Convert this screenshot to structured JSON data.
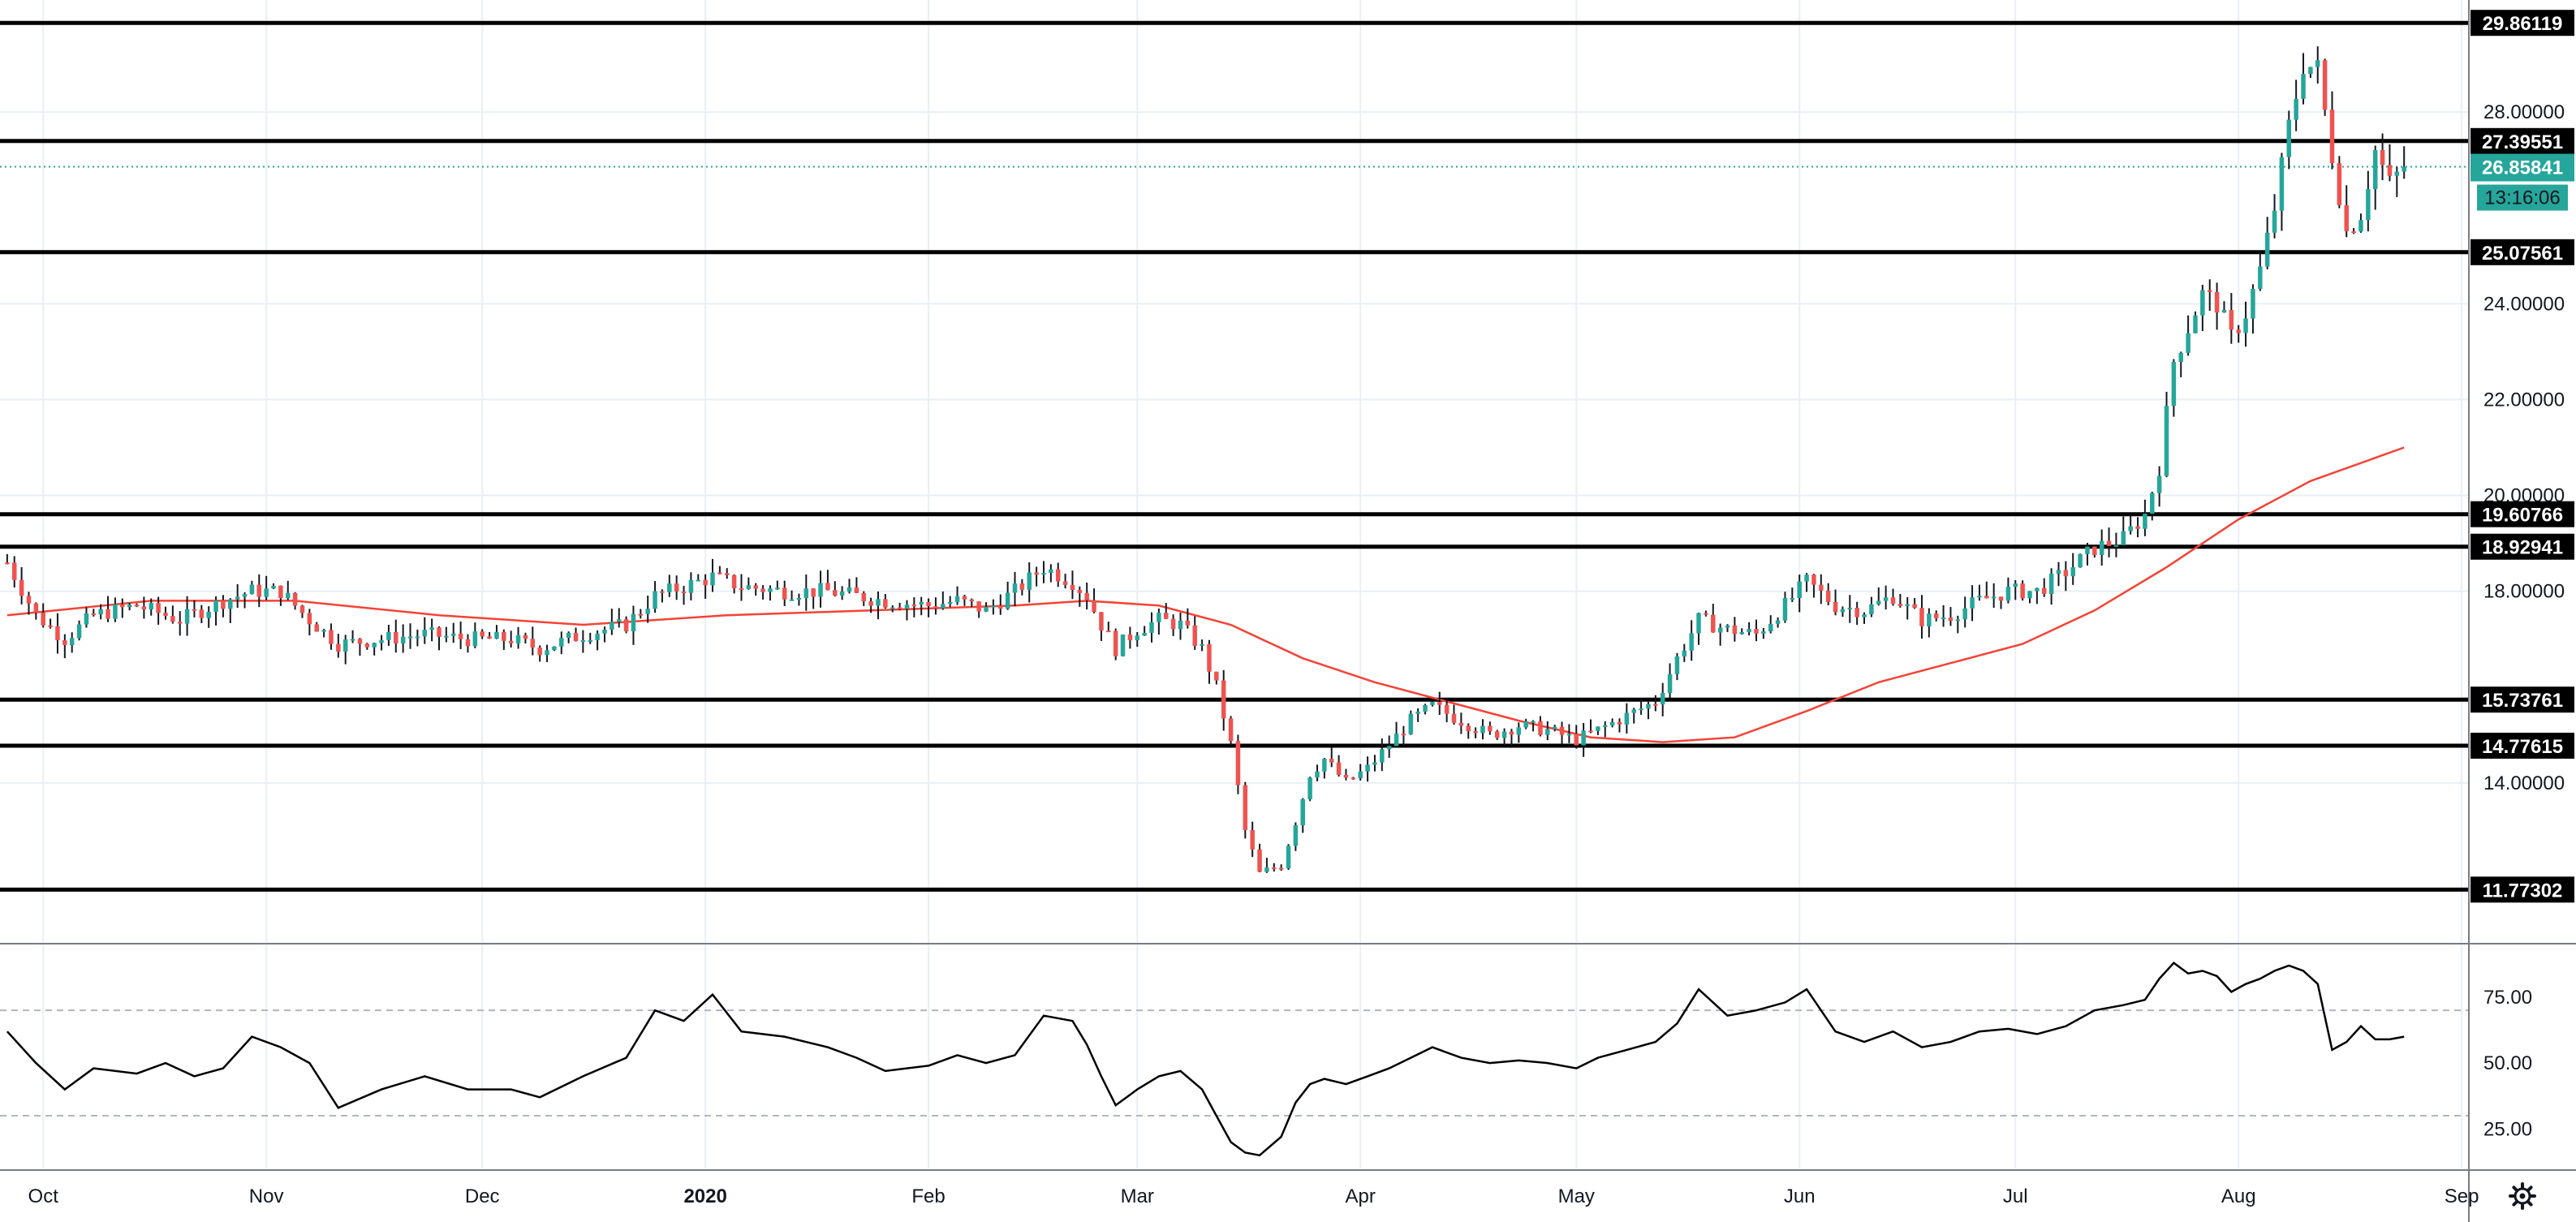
{
  "colors": {
    "up": "#26a69a",
    "down": "#ef5350",
    "ma": "#f44336",
    "line": "#000000",
    "current": "#26a69a",
    "grid": "#e9eff4",
    "rsi_band": "#b2b5be"
  },
  "footer": {
    "settings_icon": "gear-icon"
  },
  "chart_data": [
    {
      "type": "candlestick",
      "ylim": [
        11.0,
        30.0
      ],
      "y_ticks": [
        "28.00000",
        "24.00000",
        "22.00000",
        "20.00000",
        "18.00000",
        "14.00000"
      ],
      "x_ticks": [
        {
          "label": "Oct",
          "t": 5
        },
        {
          "label": "Nov",
          "t": 36
        },
        {
          "label": "Dec",
          "t": 66
        },
        {
          "label": "2020",
          "t": 97
        },
        {
          "label": "Feb",
          "t": 128
        },
        {
          "label": "Mar",
          "t": 157
        },
        {
          "label": "Apr",
          "t": 188
        },
        {
          "label": "May",
          "t": 218
        },
        {
          "label": "Jun",
          "t": 249
        },
        {
          "label": "Jul",
          "t": 279
        },
        {
          "label": "Aug",
          "t": 310
        },
        {
          "label": "Sep",
          "t": 341
        }
      ],
      "levels": [
        {
          "value": 29.86119,
          "label": "29.86119"
        },
        {
          "value": 27.39551,
          "label": "27.39551"
        },
        {
          "value": 25.07561,
          "label": "25.07561"
        },
        {
          "value": 19.60766,
          "label": "19.60766"
        },
        {
          "value": 18.92941,
          "label": "18.92941"
        },
        {
          "value": 15.73761,
          "label": "15.73761"
        },
        {
          "value": 14.77615,
          "label": "14.77615"
        },
        {
          "value": 11.77302,
          "label": "11.77302"
        }
      ],
      "current_price": {
        "value": 26.85841,
        "label": "26.85841",
        "countdown": "13:16:06"
      },
      "price_path": [
        [
          0,
          18.6
        ],
        [
          4,
          17.5
        ],
        [
          8,
          17.0
        ],
        [
          12,
          17.5
        ],
        [
          18,
          17.7
        ],
        [
          24,
          17.4
        ],
        [
          30,
          17.8
        ],
        [
          34,
          18.0
        ],
        [
          38,
          18.0
        ],
        [
          42,
          17.4
        ],
        [
          46,
          16.9
        ],
        [
          52,
          17.0
        ],
        [
          58,
          17.1
        ],
        [
          64,
          17.0
        ],
        [
          70,
          17.0
        ],
        [
          74,
          16.8
        ],
        [
          80,
          17.1
        ],
        [
          86,
          17.3
        ],
        [
          90,
          17.9
        ],
        [
          94,
          18.1
        ],
        [
          98,
          18.3
        ],
        [
          102,
          18.1
        ],
        [
          108,
          18.0
        ],
        [
          114,
          18.0
        ],
        [
          118,
          17.9
        ],
        [
          122,
          17.8
        ],
        [
          128,
          17.7
        ],
        [
          132,
          17.8
        ],
        [
          136,
          17.6
        ],
        [
          140,
          18.0
        ],
        [
          144,
          18.5
        ],
        [
          148,
          18.2
        ],
        [
          150,
          17.9
        ],
        [
          152,
          17.3
        ],
        [
          154,
          16.8
        ],
        [
          157,
          17.2
        ],
        [
          160,
          17.4
        ],
        [
          163,
          17.3
        ],
        [
          166,
          16.8
        ],
        [
          168,
          16.0
        ],
        [
          170,
          14.8
        ],
        [
          172,
          13.0
        ],
        [
          174,
          12.1
        ],
        [
          177,
          12.3
        ],
        [
          179,
          13.2
        ],
        [
          181,
          14.2
        ],
        [
          183,
          14.5
        ],
        [
          186,
          14.0
        ],
        [
          189,
          14.3
        ],
        [
          192,
          14.8
        ],
        [
          195,
          15.3
        ],
        [
          198,
          15.6
        ],
        [
          202,
          15.3
        ],
        [
          206,
          15.0
        ],
        [
          210,
          15.2
        ],
        [
          214,
          15.1
        ],
        [
          218,
          14.9
        ],
        [
          221,
          15.1
        ],
        [
          225,
          15.4
        ],
        [
          229,
          15.7
        ],
        [
          232,
          16.6
        ],
        [
          235,
          17.4
        ],
        [
          239,
          17.2
        ],
        [
          243,
          17.1
        ],
        [
          247,
          17.7
        ],
        [
          250,
          18.2
        ],
        [
          254,
          17.7
        ],
        [
          258,
          17.6
        ],
        [
          262,
          17.9
        ],
        [
          266,
          17.4
        ],
        [
          270,
          17.5
        ],
        [
          274,
          17.8
        ],
        [
          278,
          18.0
        ],
        [
          282,
          18.0
        ],
        [
          286,
          18.4
        ],
        [
          290,
          18.9
        ],
        [
          294,
          19.1
        ],
        [
          297,
          19.6
        ],
        [
          299,
          20.6
        ],
        [
          301,
          22.8
        ],
        [
          303,
          23.5
        ],
        [
          305,
          24.2
        ],
        [
          307,
          24.0
        ],
        [
          309,
          23.3
        ],
        [
          311,
          23.8
        ],
        [
          313,
          24.7
        ],
        [
          315,
          26.0
        ],
        [
          317,
          27.7
        ],
        [
          319,
          29.0
        ],
        [
          321,
          28.9
        ],
        [
          323,
          27.1
        ],
        [
          325,
          25.5
        ],
        [
          327,
          25.9
        ],
        [
          329,
          27.2
        ],
        [
          331,
          26.5
        ],
        [
          333,
          26.86
        ]
      ],
      "ma_path": [
        [
          0,
          17.5
        ],
        [
          20,
          17.8
        ],
        [
          40,
          17.8
        ],
        [
          60,
          17.5
        ],
        [
          80,
          17.3
        ],
        [
          100,
          17.5
        ],
        [
          120,
          17.6
        ],
        [
          140,
          17.7
        ],
        [
          150,
          17.8
        ],
        [
          160,
          17.7
        ],
        [
          170,
          17.3
        ],
        [
          180,
          16.6
        ],
        [
          190,
          16.1
        ],
        [
          200,
          15.7
        ],
        [
          210,
          15.3
        ],
        [
          220,
          14.95
        ],
        [
          230,
          14.85
        ],
        [
          240,
          14.95
        ],
        [
          250,
          15.5
        ],
        [
          260,
          16.1
        ],
        [
          270,
          16.5
        ],
        [
          280,
          16.9
        ],
        [
          290,
          17.6
        ],
        [
          300,
          18.5
        ],
        [
          310,
          19.5
        ],
        [
          320,
          20.3
        ],
        [
          333,
          21.0
        ]
      ]
    },
    {
      "type": "line",
      "ylim": [
        10,
        95
      ],
      "y_ticks": [
        "75.00",
        "50.00",
        "25.00"
      ],
      "bands": [
        70,
        30
      ],
      "values": [
        [
          0,
          62
        ],
        [
          4,
          50
        ],
        [
          8,
          40
        ],
        [
          12,
          48
        ],
        [
          18,
          46
        ],
        [
          22,
          50
        ],
        [
          26,
          45
        ],
        [
          30,
          48
        ],
        [
          34,
          60
        ],
        [
          38,
          56
        ],
        [
          42,
          50
        ],
        [
          46,
          33
        ],
        [
          52,
          40
        ],
        [
          58,
          45
        ],
        [
          64,
          40
        ],
        [
          70,
          40
        ],
        [
          74,
          37
        ],
        [
          80,
          45
        ],
        [
          86,
          52
        ],
        [
          90,
          70
        ],
        [
          94,
          66
        ],
        [
          98,
          76
        ],
        [
          102,
          62
        ],
        [
          108,
          60
        ],
        [
          114,
          56
        ],
        [
          118,
          52
        ],
        [
          122,
          47
        ],
        [
          128,
          49
        ],
        [
          132,
          53
        ],
        [
          136,
          50
        ],
        [
          140,
          53
        ],
        [
          144,
          68
        ],
        [
          148,
          66
        ],
        [
          150,
          57
        ],
        [
          152,
          45
        ],
        [
          154,
          34
        ],
        [
          157,
          40
        ],
        [
          160,
          45
        ],
        [
          163,
          47
        ],
        [
          166,
          40
        ],
        [
          168,
          30
        ],
        [
          170,
          20
        ],
        [
          172,
          16
        ],
        [
          174,
          15
        ],
        [
          177,
          22
        ],
        [
          179,
          35
        ],
        [
          181,
          42
        ],
        [
          183,
          44
        ],
        [
          186,
          42
        ],
        [
          189,
          45
        ],
        [
          192,
          48
        ],
        [
          195,
          52
        ],
        [
          198,
          56
        ],
        [
          202,
          52
        ],
        [
          206,
          50
        ],
        [
          210,
          51
        ],
        [
          214,
          50
        ],
        [
          218,
          48
        ],
        [
          221,
          52
        ],
        [
          225,
          55
        ],
        [
          229,
          58
        ],
        [
          232,
          65
        ],
        [
          235,
          78
        ],
        [
          239,
          68
        ],
        [
          243,
          70
        ],
        [
          247,
          73
        ],
        [
          250,
          78
        ],
        [
          254,
          62
        ],
        [
          258,
          58
        ],
        [
          262,
          62
        ],
        [
          266,
          56
        ],
        [
          270,
          58
        ],
        [
          274,
          62
        ],
        [
          278,
          63
        ],
        [
          282,
          61
        ],
        [
          286,
          64
        ],
        [
          290,
          70
        ],
        [
          294,
          72
        ],
        [
          297,
          74
        ],
        [
          299,
          82
        ],
        [
          301,
          88
        ],
        [
          303,
          84
        ],
        [
          305,
          85
        ],
        [
          307,
          83
        ],
        [
          309,
          77
        ],
        [
          311,
          80
        ],
        [
          313,
          82
        ],
        [
          315,
          85
        ],
        [
          317,
          87
        ],
        [
          319,
          85
        ],
        [
          321,
          80
        ],
        [
          323,
          55
        ],
        [
          325,
          58
        ],
        [
          327,
          64
        ],
        [
          329,
          59
        ],
        [
          331,
          59
        ],
        [
          333,
          60
        ]
      ]
    }
  ]
}
